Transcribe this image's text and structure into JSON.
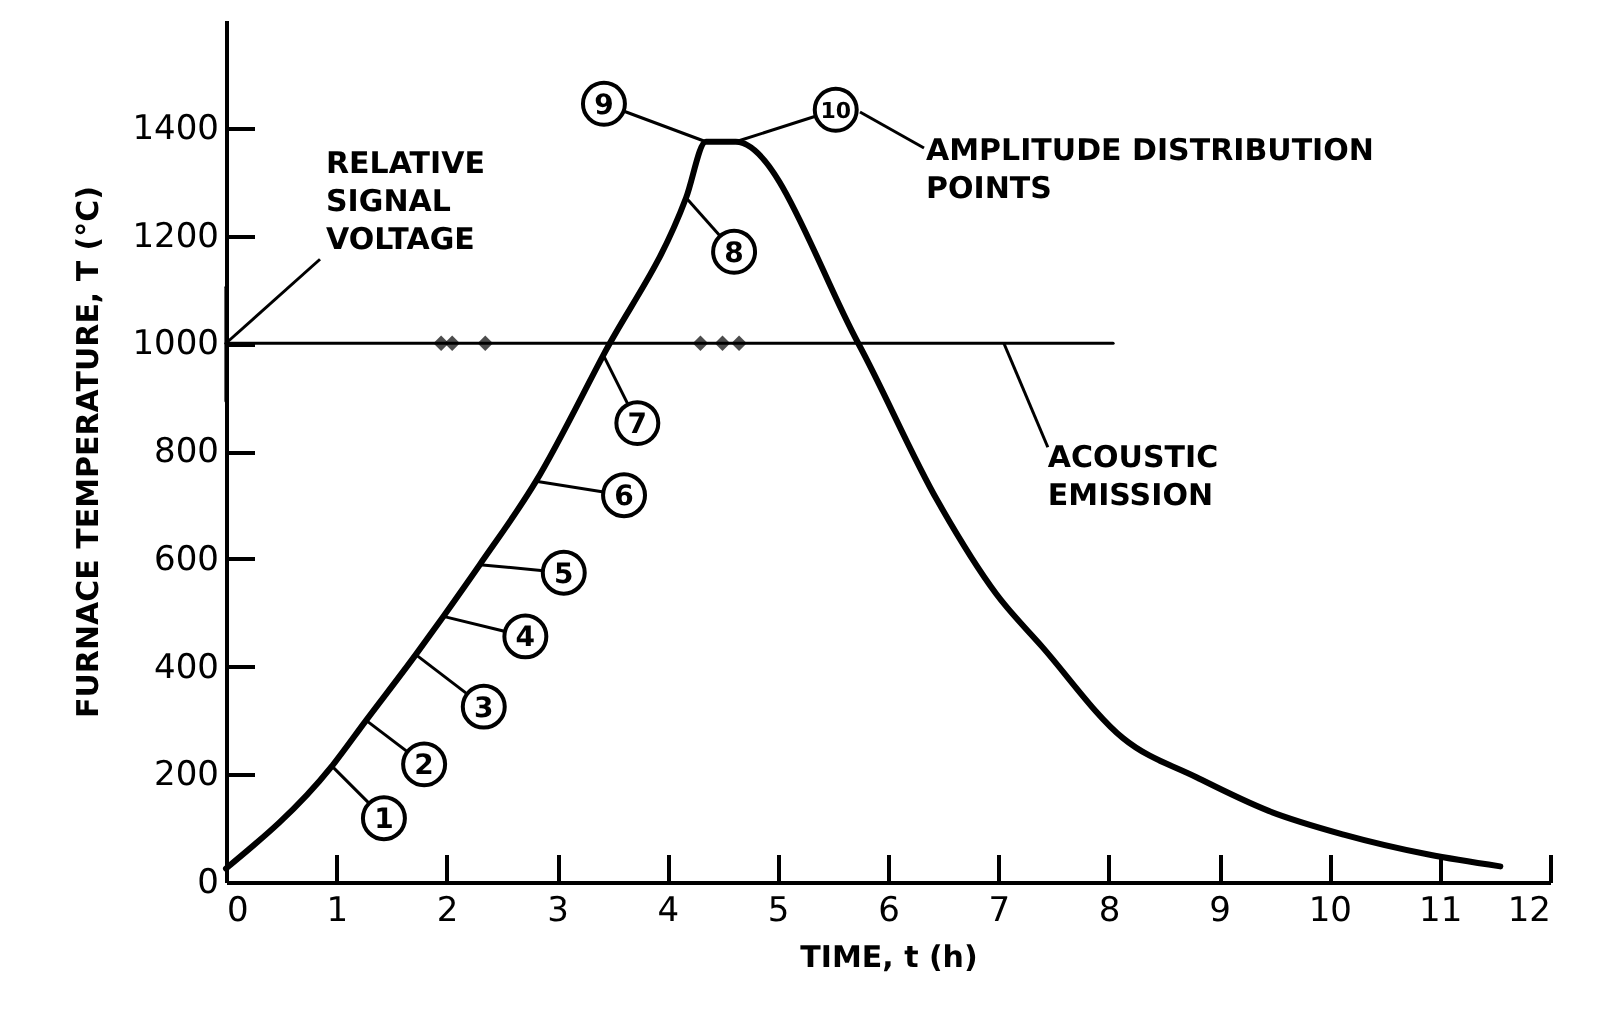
{
  "chart_data": {
    "type": "line",
    "xlabel": "TIME, t (h)",
    "ylabel": "FURNACE TEMPERATURE, T (°C)",
    "xlim": [
      0,
      12
    ],
    "ylim": [
      0,
      1600
    ],
    "xticks": [
      0,
      1,
      2,
      3,
      4,
      5,
      6,
      7,
      8,
      9,
      10,
      11,
      12
    ],
    "yticks": [
      0,
      200,
      400,
      600,
      800,
      1000,
      1200,
      1400
    ],
    "series": [
      {
        "color": "#000000",
        "x": [
          0,
          0.96,
          1.27,
          1.72,
          1.97,
          2.3,
          2.81,
          3.42,
          4.17,
          4.35,
          4.62,
          5.73,
          6.45,
          6.98,
          7.4,
          8.13,
          8.8,
          9.45,
          10.13,
          10.9,
          11.55
        ],
        "values": [
          25,
          215,
          300,
          422,
          493,
          589,
          744,
          978,
          1270,
          1374,
          1374,
          1000,
          707,
          535,
          436,
          267,
          194,
          132,
          88,
          51,
          29
        ]
      },
      {
        "color": "#000000",
        "x": [
          0,
          8.04
        ],
        "values": [
          1000,
          1000
        ]
      },
      {
        "color": "#000000",
        "x": [
          0,
          0
        ],
        "values": [
          893,
          1104
        ]
      },
      {
        "type": "scatter",
        "color": "#000000",
        "x": [
          1.95,
          2.05,
          2.35,
          4.3,
          4.5,
          4.65
        ],
        "values": [
          1000,
          1000,
          1000,
          1000,
          1000,
          1000
        ]
      }
    ],
    "annotations": [
      {
        "text": "1",
        "x": 0.96,
        "y": 215
      },
      {
        "text": "2",
        "x": 1.27,
        "y": 300
      },
      {
        "text": "3",
        "x": 1.72,
        "y": 422
      },
      {
        "text": "4",
        "x": 1.97,
        "y": 493
      },
      {
        "text": "5",
        "x": 2.3,
        "y": 589
      },
      {
        "text": "6",
        "x": 2.81,
        "y": 744
      },
      {
        "text": "7",
        "x": 3.42,
        "y": 978
      },
      {
        "text": "8",
        "x": 4.17,
        "y": 1270
      },
      {
        "text": "9",
        "x": 4.35,
        "y": 1374
      },
      {
        "text": "10",
        "x": 4.62,
        "y": 1374
      },
      {
        "text": "RELATIVE SIGNAL VOLTAGE",
        "x": 0,
        "y": 1000
      },
      "AMPLITUDE DISTRIBUTION POINTS",
      {
        "text": "ACOUSTIC EMISSION",
        "x": 7.05,
        "y": 1000
      }
    ]
  }
}
